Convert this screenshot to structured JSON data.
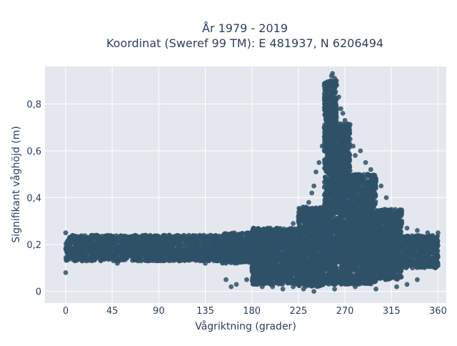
{
  "chart_data": {
    "type": "scatter",
    "title_line1": "År 1979 - 2019",
    "title_line2": "Koordinat (Sweref 99 TM): E 481937, N 6206494",
    "xlabel": "Vågriktning (grader)",
    "ylabel": "Signifikant våghöjd (m)",
    "xlim": [
      -20,
      368
    ],
    "ylim": [
      -0.05,
      0.96
    ],
    "xticks": [
      0,
      45,
      90,
      135,
      180,
      225,
      270,
      315,
      360
    ],
    "xtick_labels": [
      "0",
      "45",
      "90",
      "135",
      "180",
      "225",
      "270",
      "315",
      "360"
    ],
    "yticks": [
      0,
      0.2,
      0.4,
      0.6,
      0.8
    ],
    "ytick_labels": [
      "0",
      "0,2",
      "0,4",
      "0,6",
      "0,8"
    ],
    "grid": true,
    "background_color": "#e5e7ef",
    "marker_color": "#2f5168",
    "points": [
      [
        0,
        0.08
      ],
      [
        0,
        0.25
      ],
      [
        5,
        0.15
      ],
      [
        10,
        0.22
      ],
      [
        20,
        0.13
      ],
      [
        30,
        0.24
      ],
      [
        40,
        0.14
      ],
      [
        45,
        0.23
      ],
      [
        50,
        0.12
      ],
      [
        60,
        0.21
      ],
      [
        70,
        0.13
      ],
      [
        80,
        0.22
      ],
      [
        90,
        0.15
      ],
      [
        100,
        0.24
      ],
      [
        110,
        0.14
      ],
      [
        120,
        0.22
      ],
      [
        130,
        0.13
      ],
      [
        135,
        0.12
      ],
      [
        140,
        0.24
      ],
      [
        150,
        0.15
      ],
      [
        155,
        0.05
      ],
      [
        160,
        0.02
      ],
      [
        165,
        0.03
      ],
      [
        170,
        0.22
      ],
      [
        175,
        0.05
      ],
      [
        180,
        0.1
      ],
      [
        185,
        0.03
      ],
      [
        190,
        0.25
      ],
      [
        195,
        0.08
      ],
      [
        200,
        0.02
      ],
      [
        205,
        0.15
      ],
      [
        210,
        0.04
      ],
      [
        215,
        0.2
      ],
      [
        220,
        0.29
      ],
      [
        225,
        0.32
      ],
      [
        230,
        0.35
      ],
      [
        235,
        0.38
      ],
      [
        238,
        0.42
      ],
      [
        240,
        0.45
      ],
      [
        242,
        0.51
      ],
      [
        245,
        0.55
      ],
      [
        248,
        0.62
      ],
      [
        250,
        0.7
      ],
      [
        252,
        0.78
      ],
      [
        255,
        0.85
      ],
      [
        257,
        0.92
      ],
      [
        258,
        0.93
      ],
      [
        260,
        0.91
      ],
      [
        262,
        0.88
      ],
      [
        264,
        0.83
      ],
      [
        266,
        0.78
      ],
      [
        268,
        0.76
      ],
      [
        270,
        0.73
      ],
      [
        272,
        0.7
      ],
      [
        275,
        0.65
      ],
      [
        278,
        0.62
      ],
      [
        280,
        0.58
      ],
      [
        285,
        0.6
      ],
      [
        290,
        0.55
      ],
      [
        292,
        0.5
      ],
      [
        295,
        0.52
      ],
      [
        300,
        0.48
      ],
      [
        305,
        0.45
      ],
      [
        310,
        0.4
      ],
      [
        315,
        0.35
      ],
      [
        320,
        0.33
      ],
      [
        325,
        0.3
      ],
      [
        330,
        0.27
      ],
      [
        340,
        0.26
      ],
      [
        350,
        0.25
      ],
      [
        360,
        0.25
      ],
      [
        360,
        0.11
      ],
      [
        350,
        0.12
      ],
      [
        340,
        0.05
      ],
      [
        330,
        0.03
      ],
      [
        320,
        0.02
      ],
      [
        300,
        0.01
      ],
      [
        280,
        0.02
      ],
      [
        260,
        0.01
      ],
      [
        240,
        0.0
      ],
      [
        230,
        0.01
      ],
      [
        220,
        0.02
      ],
      [
        210,
        0.01
      ],
      [
        200,
        0.03
      ],
      [
        190,
        0.02
      ]
    ],
    "cloud_regions": [
      {
        "x0": 0,
        "x1": 150,
        "ymin": 0.13,
        "ymax": 0.24
      },
      {
        "x0": 150,
        "x1": 200,
        "ymin": 0.12,
        "ymax": 0.25
      },
      {
        "x0": 180,
        "x1": 225,
        "ymin": 0.03,
        "ymax": 0.27
      },
      {
        "x0": 225,
        "x1": 250,
        "ymin": 0.02,
        "ymax": 0.36
      },
      {
        "x0": 250,
        "x1": 262,
        "ymin": 0.03,
        "ymax": 0.9
      },
      {
        "x0": 262,
        "x1": 275,
        "ymin": 0.03,
        "ymax": 0.72
      },
      {
        "x0": 275,
        "x1": 300,
        "ymin": 0.03,
        "ymax": 0.5
      },
      {
        "x0": 300,
        "x1": 325,
        "ymin": 0.05,
        "ymax": 0.35
      },
      {
        "x0": 325,
        "x1": 360,
        "ymin": 0.1,
        "ymax": 0.24
      }
    ]
  }
}
